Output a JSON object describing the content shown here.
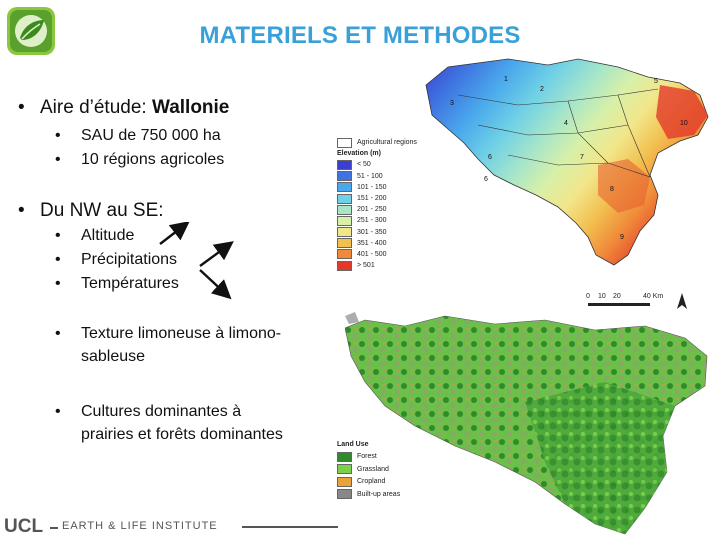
{
  "title": "MATERIELS ET METHODES",
  "bullets": {
    "b1_label": "Aire d’étude: ",
    "b1_bold": "Wallonie",
    "b1_sub1": "SAU de 750 000 ha",
    "b1_sub2": "10 régions agricoles",
    "b2_label": "Du NW au SE:",
    "b2_sub1": "Altitude",
    "b2_sub2": "Précipitations",
    "b2_sub3": "Températures",
    "b2_sub4": "Texture limoneuse à limono-sableuse",
    "b2_sub4_line1": "Texture limoneuse à limono-",
    "b2_sub4_line2": "sableuse",
    "b2_sub5_line1": "Cultures dominantes à",
    "b2_sub5_line2": "prairies et forêts dominantes"
  },
  "elevation_map": {
    "agri_regions_label": "Agricultural regions",
    "legend_title": "Elevation (m)",
    "legend": [
      {
        "label": "< 50",
        "color": "#3b3fd0"
      },
      {
        "label": "51 - 100",
        "color": "#3f74e0"
      },
      {
        "label": "101 - 150",
        "color": "#4aa8ec"
      },
      {
        "label": "151 - 200",
        "color": "#6fd0e6"
      },
      {
        "label": "201 - 250",
        "color": "#a8e6c8"
      },
      {
        "label": "251 - 300",
        "color": "#d8f0a8"
      },
      {
        "label": "301 - 350",
        "color": "#f2e68a"
      },
      {
        "label": "351 - 400",
        "color": "#f2c050"
      },
      {
        "label": "401 - 500",
        "color": "#f08a3a"
      },
      {
        "label": "> 501",
        "color": "#e23a2a"
      }
    ],
    "region_numbers": [
      "1",
      "2",
      "3",
      "4",
      "5",
      "6",
      "6",
      "7",
      "8",
      "9",
      "10"
    ],
    "scale_ticks": [
      "0",
      "10",
      "20",
      "40 Km"
    ]
  },
  "landuse_map": {
    "legend_title": "Land Use",
    "legend": [
      {
        "label": "Forest",
        "color": "#2f8a2a"
      },
      {
        "label": "Grassland",
        "color": "#7cd14a"
      },
      {
        "label": "Cropland",
        "color": "#e8a43a"
      },
      {
        "label": "Built-up areas",
        "color": "#888888"
      }
    ]
  },
  "footer": {
    "ucl": "UCL",
    "institute": "EARTH & LIFE INSTITUTE"
  },
  "colors": {
    "title": "#3aa0d8",
    "logo_green": "#7ab648"
  }
}
